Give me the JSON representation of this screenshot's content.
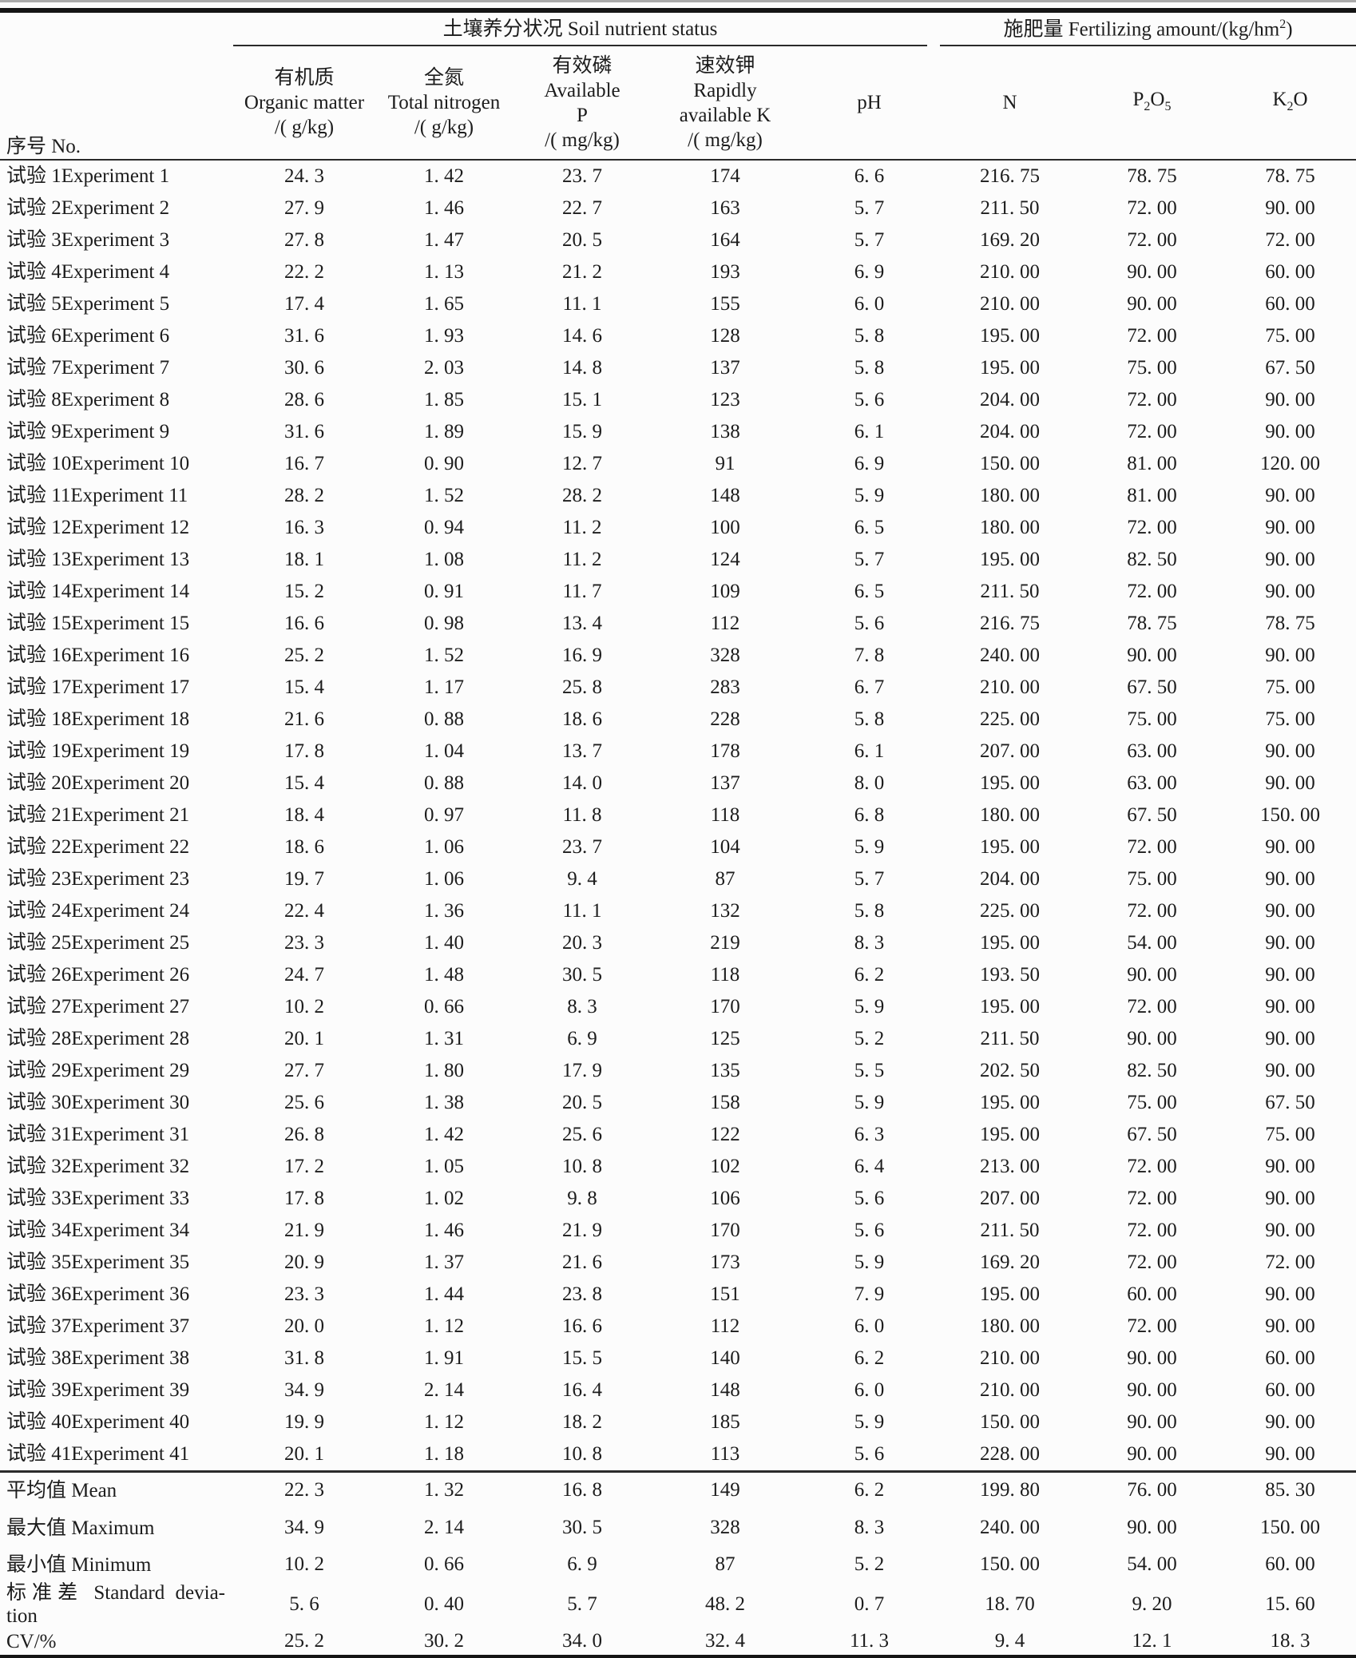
{
  "table": {
    "row_header_label": "序号 No.",
    "groups": {
      "soil": {
        "label": "土壤养分状况 Soil nutrient status"
      },
      "fertilizing": {
        "text": "施肥量 Fertilizing amount/(kg/hm",
        "sup": "2",
        "close": ")"
      }
    },
    "columns": {
      "organic": {
        "lines": [
          "有机质",
          "Organic matter",
          "/( g/kg)"
        ]
      },
      "nitrogen": {
        "lines": [
          "全氮",
          "Total nitrogen",
          "/( g/kg)"
        ]
      },
      "phosphorus": {
        "lines": [
          "有效磷",
          "Available",
          "P",
          "/( mg/kg)"
        ]
      },
      "potassium": {
        "lines": [
          "速效钾",
          "Rapidly",
          "available K",
          "/( mg/kg)"
        ]
      },
      "ph": {
        "label": "pH"
      },
      "n": {
        "label": "N"
      },
      "p2o5": {
        "b1": "P",
        "s1": "2",
        "b2": "O",
        "s2": "5"
      },
      "k2o": {
        "b1": "K",
        "s1": "2",
        "b2": "O"
      }
    },
    "rows": [
      {
        "label": "试验 1Experiment 1",
        "values": [
          "24. 3",
          "1. 42",
          "23. 7",
          "174",
          "6. 6",
          "216. 75",
          "78. 75",
          "78. 75"
        ]
      },
      {
        "label": "试验 2Experiment 2",
        "values": [
          "27. 9",
          "1. 46",
          "22. 7",
          "163",
          "5. 7",
          "211. 50",
          "72. 00",
          "90. 00"
        ]
      },
      {
        "label": "试验 3Experiment 3",
        "values": [
          "27. 8",
          "1. 47",
          "20. 5",
          "164",
          "5. 7",
          "169. 20",
          "72. 00",
          "72. 00"
        ]
      },
      {
        "label": "试验 4Experiment 4",
        "values": [
          "22. 2",
          "1. 13",
          "21. 2",
          "193",
          "6. 9",
          "210. 00",
          "90. 00",
          "60. 00"
        ]
      },
      {
        "label": "试验 5Experiment 5",
        "values": [
          "17. 4",
          "1. 65",
          "11. 1",
          "155",
          "6. 0",
          "210. 00",
          "90. 00",
          "60. 00"
        ]
      },
      {
        "label": "试验 6Experiment 6",
        "values": [
          "31. 6",
          "1. 93",
          "14. 6",
          "128",
          "5. 8",
          "195. 00",
          "72. 00",
          "75. 00"
        ]
      },
      {
        "label": "试验 7Experiment 7",
        "values": [
          "30. 6",
          "2. 03",
          "14. 8",
          "137",
          "5. 8",
          "195. 00",
          "75. 00",
          "67. 50"
        ]
      },
      {
        "label": "试验 8Experiment 8",
        "values": [
          "28. 6",
          "1. 85",
          "15. 1",
          "123",
          "5. 6",
          "204. 00",
          "72. 00",
          "90. 00"
        ]
      },
      {
        "label": "试验 9Experiment 9",
        "values": [
          "31. 6",
          "1. 89",
          "15. 9",
          "138",
          "6. 1",
          "204. 00",
          "72. 00",
          "90. 00"
        ]
      },
      {
        "label": "试验 10Experiment 10",
        "values": [
          "16. 7",
          "0. 90",
          "12. 7",
          "91",
          "6. 9",
          "150. 00",
          "81. 00",
          "120. 00"
        ]
      },
      {
        "label": "试验 11Experiment 11",
        "values": [
          "28. 2",
          "1. 52",
          "28. 2",
          "148",
          "5. 9",
          "180. 00",
          "81. 00",
          "90. 00"
        ]
      },
      {
        "label": "试验 12Experiment 12",
        "values": [
          "16. 3",
          "0. 94",
          "11. 2",
          "100",
          "6. 5",
          "180. 00",
          "72. 00",
          "90. 00"
        ]
      },
      {
        "label": "试验 13Experiment 13",
        "values": [
          "18. 1",
          "1. 08",
          "11. 2",
          "124",
          "5. 7",
          "195. 00",
          "82. 50",
          "90. 00"
        ]
      },
      {
        "label": "试验 14Experiment 14",
        "values": [
          "15. 2",
          "0. 91",
          "11. 7",
          "109",
          "6. 5",
          "211. 50",
          "72. 00",
          "90. 00"
        ]
      },
      {
        "label": "试验 15Experiment 15",
        "values": [
          "16. 6",
          "0. 98",
          "13. 4",
          "112",
          "5. 6",
          "216. 75",
          "78. 75",
          "78. 75"
        ]
      },
      {
        "label": "试验 16Experiment 16",
        "values": [
          "25. 2",
          "1. 52",
          "16. 9",
          "328",
          "7. 8",
          "240. 00",
          "90. 00",
          "90. 00"
        ]
      },
      {
        "label": "试验 17Experiment 17",
        "values": [
          "15. 4",
          "1. 17",
          "25. 8",
          "283",
          "6. 7",
          "210. 00",
          "67. 50",
          "75. 00"
        ]
      },
      {
        "label": "试验 18Experiment 18",
        "values": [
          "21. 6",
          "0. 88",
          "18. 6",
          "228",
          "5. 8",
          "225. 00",
          "75. 00",
          "75. 00"
        ]
      },
      {
        "label": "试验 19Experiment 19",
        "values": [
          "17. 8",
          "1. 04",
          "13. 7",
          "178",
          "6. 1",
          "207. 00",
          "63. 00",
          "90. 00"
        ]
      },
      {
        "label": "试验 20Experiment 20",
        "values": [
          "15. 4",
          "0. 88",
          "14. 0",
          "137",
          "8. 0",
          "195. 00",
          "63. 00",
          "90. 00"
        ]
      },
      {
        "label": "试验 21Experiment 21",
        "values": [
          "18. 4",
          "0. 97",
          "11. 8",
          "118",
          "6. 8",
          "180. 00",
          "67. 50",
          "150. 00"
        ]
      },
      {
        "label": "试验 22Experiment 22",
        "values": [
          "18. 6",
          "1. 06",
          "23. 7",
          "104",
          "5. 9",
          "195. 00",
          "72. 00",
          "90. 00"
        ]
      },
      {
        "label": "试验 23Experiment 23",
        "values": [
          "19. 7",
          "1. 06",
          "9. 4",
          "87",
          "5. 7",
          "204. 00",
          "75. 00",
          "90. 00"
        ]
      },
      {
        "label": "试验 24Experiment 24",
        "values": [
          "22. 4",
          "1. 36",
          "11. 1",
          "132",
          "5. 8",
          "225. 00",
          "72. 00",
          "90. 00"
        ]
      },
      {
        "label": "试验 25Experiment 25",
        "values": [
          "23. 3",
          "1. 40",
          "20. 3",
          "219",
          "8. 3",
          "195. 00",
          "54. 00",
          "90. 00"
        ]
      },
      {
        "label": "试验 26Experiment 26",
        "values": [
          "24. 7",
          "1. 48",
          "30. 5",
          "118",
          "6. 2",
          "193. 50",
          "90. 00",
          "90. 00"
        ]
      },
      {
        "label": "试验 27Experiment 27",
        "values": [
          "10. 2",
          "0. 66",
          "8. 3",
          "170",
          "5. 9",
          "195. 00",
          "72. 00",
          "90. 00"
        ]
      },
      {
        "label": "试验 28Experiment 28",
        "values": [
          "20. 1",
          "1. 31",
          "6. 9",
          "125",
          "5. 2",
          "211. 50",
          "90. 00",
          "90. 00"
        ]
      },
      {
        "label": "试验 29Experiment 29",
        "values": [
          "27. 7",
          "1. 80",
          "17. 9",
          "135",
          "5. 5",
          "202. 50",
          "82. 50",
          "90. 00"
        ]
      },
      {
        "label": "试验 30Experiment 30",
        "values": [
          "25. 6",
          "1. 38",
          "20. 5",
          "158",
          "5. 9",
          "195. 00",
          "75. 00",
          "67. 50"
        ]
      },
      {
        "label": "试验 31Experiment 31",
        "values": [
          "26. 8",
          "1. 42",
          "25. 6",
          "122",
          "6. 3",
          "195. 00",
          "67. 50",
          "75. 00"
        ]
      },
      {
        "label": "试验 32Experiment 32",
        "values": [
          "17. 2",
          "1. 05",
          "10. 8",
          "102",
          "6. 4",
          "213. 00",
          "72. 00",
          "90. 00"
        ]
      },
      {
        "label": "试验 33Experiment 33",
        "values": [
          "17. 8",
          "1. 02",
          "9. 8",
          "106",
          "5. 6",
          "207. 00",
          "72. 00",
          "90. 00"
        ]
      },
      {
        "label": "试验 34Experiment 34",
        "values": [
          "21. 9",
          "1. 46",
          "21. 9",
          "170",
          "5. 6",
          "211. 50",
          "72. 00",
          "90. 00"
        ]
      },
      {
        "label": "试验 35Experiment 35",
        "values": [
          "20. 9",
          "1. 37",
          "21. 6",
          "173",
          "5. 9",
          "169. 20",
          "72. 00",
          "72. 00"
        ]
      },
      {
        "label": "试验 36Experiment 36",
        "values": [
          "23. 3",
          "1. 44",
          "23. 8",
          "151",
          "7. 9",
          "195. 00",
          "60. 00",
          "90. 00"
        ]
      },
      {
        "label": "试验 37Experiment 37",
        "values": [
          "20. 0",
          "1. 12",
          "16. 6",
          "112",
          "6. 0",
          "180. 00",
          "72. 00",
          "90. 00"
        ]
      },
      {
        "label": "试验 38Experiment 38",
        "values": [
          "31. 8",
          "1. 91",
          "15. 5",
          "140",
          "6. 2",
          "210. 00",
          "90. 00",
          "60. 00"
        ]
      },
      {
        "label": "试验 39Experiment 39",
        "values": [
          "34. 9",
          "2. 14",
          "16. 4",
          "148",
          "6. 0",
          "210. 00",
          "90. 00",
          "60. 00"
        ]
      },
      {
        "label": "试验 40Experiment 40",
        "values": [
          "19. 9",
          "1. 12",
          "18. 2",
          "185",
          "5. 9",
          "150. 00",
          "90. 00",
          "90. 00"
        ]
      },
      {
        "label": "试验 41Experiment 41",
        "values": [
          "20. 1",
          "1. 18",
          "10. 8",
          "113",
          "5. 6",
          "228. 00",
          "90. 00",
          "90. 00"
        ]
      }
    ],
    "summary_rows": [
      {
        "label_lines": [
          "平均值 Mean"
        ],
        "values": [
          "22. 3",
          "1. 32",
          "16. 8",
          "149",
          "6. 2",
          "199. 80",
          "76. 00",
          "85. 30"
        ]
      },
      {
        "label_lines": [
          "最大值 Maximum"
        ],
        "values": [
          "34. 9",
          "2. 14",
          "30. 5",
          "328",
          "8. 3",
          "240. 00",
          "90. 00",
          "150. 00"
        ]
      },
      {
        "label_lines": [
          "最小值 Minimum"
        ],
        "values": [
          "10. 2",
          "0. 66",
          "6. 9",
          "87",
          "5. 2",
          "150. 00",
          "54. 00",
          "60. 00"
        ]
      },
      {
        "label_lines": [
          "标准差 Standard devia-",
          "tion"
        ],
        "values": [
          "5. 6",
          "0. 40",
          "5. 7",
          "48. 2",
          "0. 7",
          "18. 70",
          "9. 20",
          "15. 60"
        ]
      },
      {
        "label_lines": [
          "CV/%"
        ],
        "values": [
          "25. 2",
          "30. 2",
          "34. 0",
          "32. 4",
          "11. 3",
          "9. 4",
          "12. 1",
          "18. 3"
        ]
      }
    ]
  },
  "colors": {
    "rule": "#151515",
    "text": "#1c1c1c",
    "background": "#fcfcfc"
  }
}
